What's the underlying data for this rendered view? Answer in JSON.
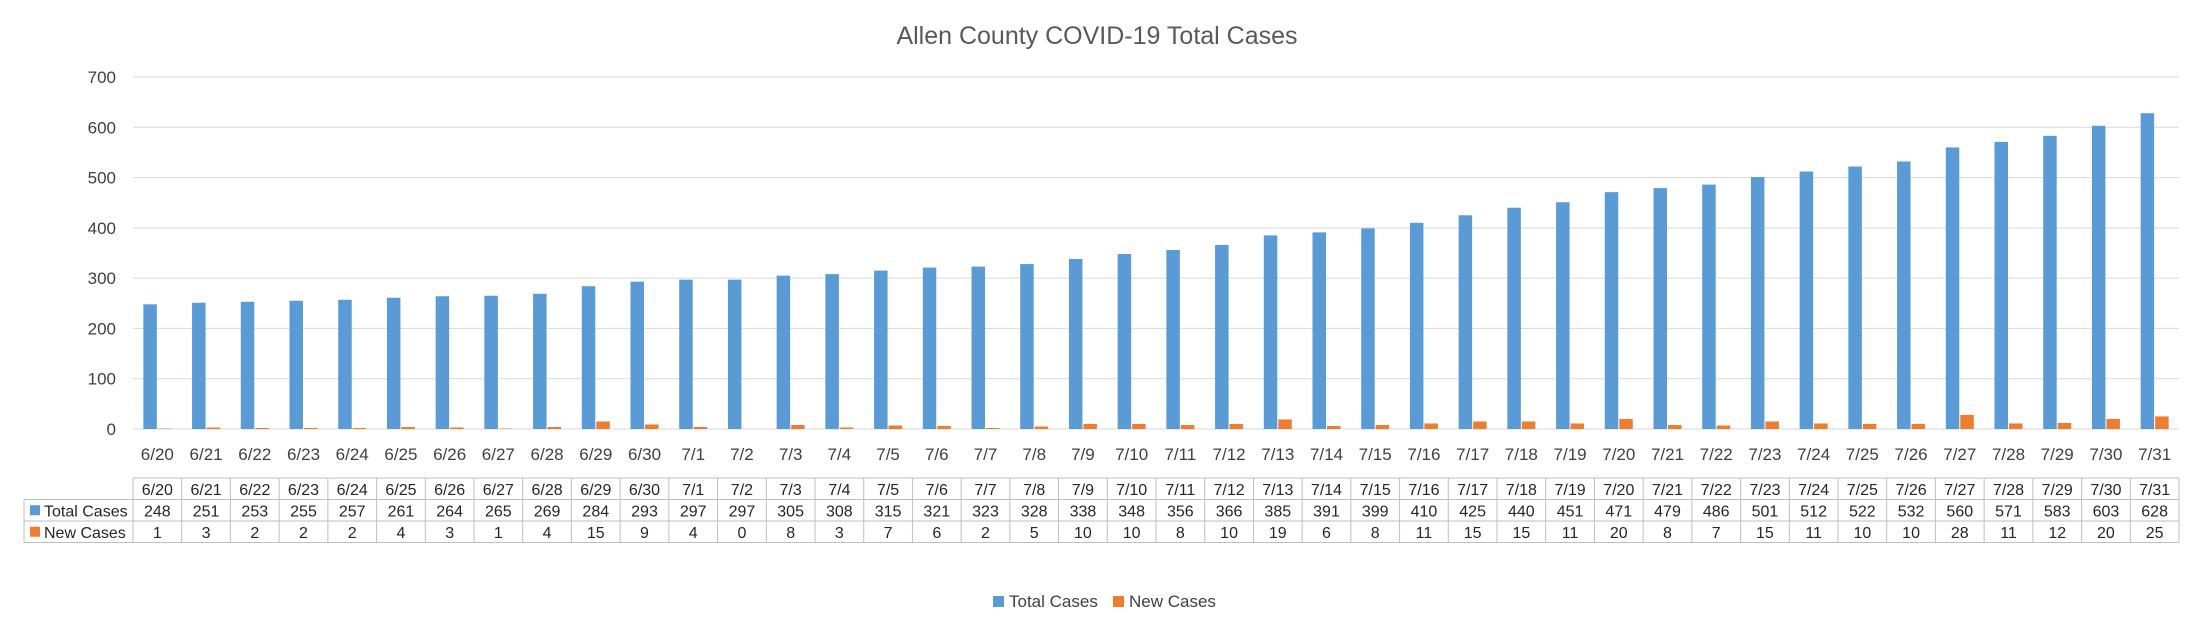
{
  "chart_data": {
    "type": "bar",
    "title": "Allen County COVID-19 Total Cases",
    "xlabel": "",
    "ylabel": "",
    "ylim": [
      0,
      700
    ],
    "yticks": [
      0,
      100,
      200,
      300,
      400,
      500,
      600,
      700
    ],
    "grid": true,
    "legend_position": "bottom",
    "data_table": true,
    "categories": [
      "6/20",
      "6/21",
      "6/22",
      "6/23",
      "6/24",
      "6/25",
      "6/26",
      "6/27",
      "6/28",
      "6/29",
      "6/30",
      "7/1",
      "7/2",
      "7/3",
      "7/4",
      "7/5",
      "7/6",
      "7/7",
      "7/8",
      "7/9",
      "7/10",
      "7/11",
      "7/12",
      "7/13",
      "7/14",
      "7/15",
      "7/16",
      "7/17",
      "7/18",
      "7/19",
      "7/20",
      "7/21",
      "7/22",
      "7/23",
      "7/24",
      "7/25",
      "7/26",
      "7/27",
      "7/28",
      "7/29",
      "7/30",
      "7/31"
    ],
    "series": [
      {
        "name": "Total Cases",
        "color": "#5b9bd5",
        "values": [
          248,
          251,
          253,
          255,
          257,
          261,
          264,
          265,
          269,
          284,
          293,
          297,
          297,
          305,
          308,
          315,
          321,
          323,
          328,
          338,
          348,
          356,
          366,
          385,
          391,
          399,
          410,
          425,
          440,
          451,
          471,
          479,
          486,
          501,
          512,
          522,
          532,
          560,
          571,
          583,
          603,
          628
        ]
      },
      {
        "name": "New Cases",
        "color": "#ed7d31",
        "values": [
          1,
          3,
          2,
          2,
          2,
          4,
          3,
          1,
          4,
          15,
          9,
          4,
          0,
          8,
          3,
          7,
          6,
          2,
          5,
          10,
          10,
          8,
          10,
          19,
          6,
          8,
          11,
          15,
          15,
          11,
          20,
          8,
          7,
          15,
          11,
          10,
          10,
          28,
          11,
          12,
          20,
          25
        ]
      }
    ]
  }
}
